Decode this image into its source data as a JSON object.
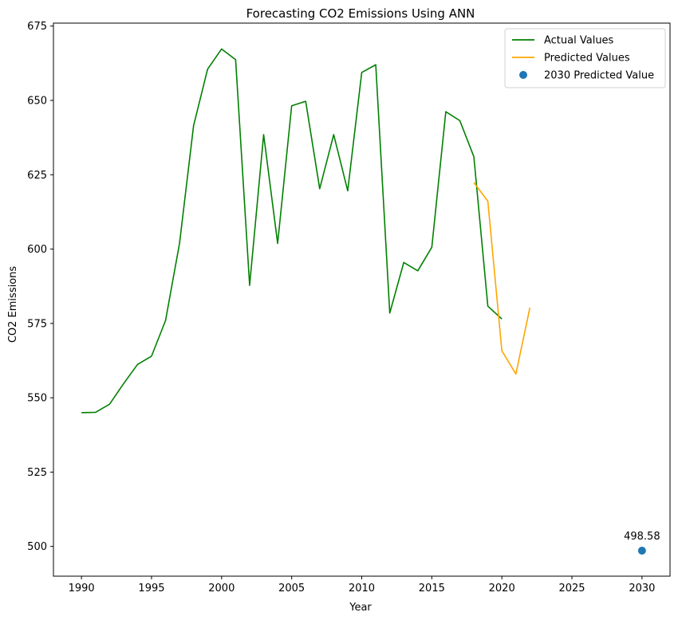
{
  "chart_data": {
    "type": "line",
    "title": "Forecasting CO2 Emissions Using ANN",
    "xlabel": "Year",
    "ylabel": "CO2 Emissions",
    "xlim": [
      1988,
      2032
    ],
    "ylim": [
      490,
      676
    ],
    "xticks": [
      1990,
      1995,
      2000,
      2005,
      2010,
      2015,
      2020,
      2025,
      2030
    ],
    "yticks": [
      500,
      525,
      550,
      575,
      600,
      625,
      650,
      675
    ],
    "grid": false,
    "legend_position": "top-right",
    "series": [
      {
        "name": "Actual Values",
        "kind": "line",
        "color": "#008000",
        "x": [
          1990,
          1991,
          1992,
          1993,
          1994,
          1995,
          1996,
          1997,
          1998,
          1999,
          2000,
          2001,
          2002,
          2003,
          2004,
          2005,
          2006,
          2007,
          2008,
          2009,
          2010,
          2011,
          2012,
          2013,
          2014,
          2015,
          2016,
          2017,
          2018,
          2019,
          2020
        ],
        "y": [
          545.0,
          545.1,
          547.8,
          554.7,
          561.2,
          564.0,
          576.0,
          602.0,
          641.5,
          660.5,
          667.3,
          663.7,
          587.8,
          638.5,
          601.9,
          648.2,
          649.7,
          620.3,
          638.5,
          619.6,
          659.4,
          662.0,
          578.5,
          595.5,
          592.7,
          600.6,
          646.2,
          643.2,
          631.1,
          580.8,
          576.5
        ]
      },
      {
        "name": "Predicted Values",
        "kind": "line",
        "color": "#ffa500",
        "x": [
          2018,
          2019,
          2020,
          2021,
          2022
        ],
        "y": [
          622.4,
          616.1,
          565.8,
          558.0,
          580.3
        ]
      },
      {
        "name": "2030 Predicted Value",
        "kind": "scatter",
        "color": "#1f77b4",
        "x": [
          2030
        ],
        "y": [
          498.58
        ],
        "annotation": "498.58"
      }
    ]
  }
}
